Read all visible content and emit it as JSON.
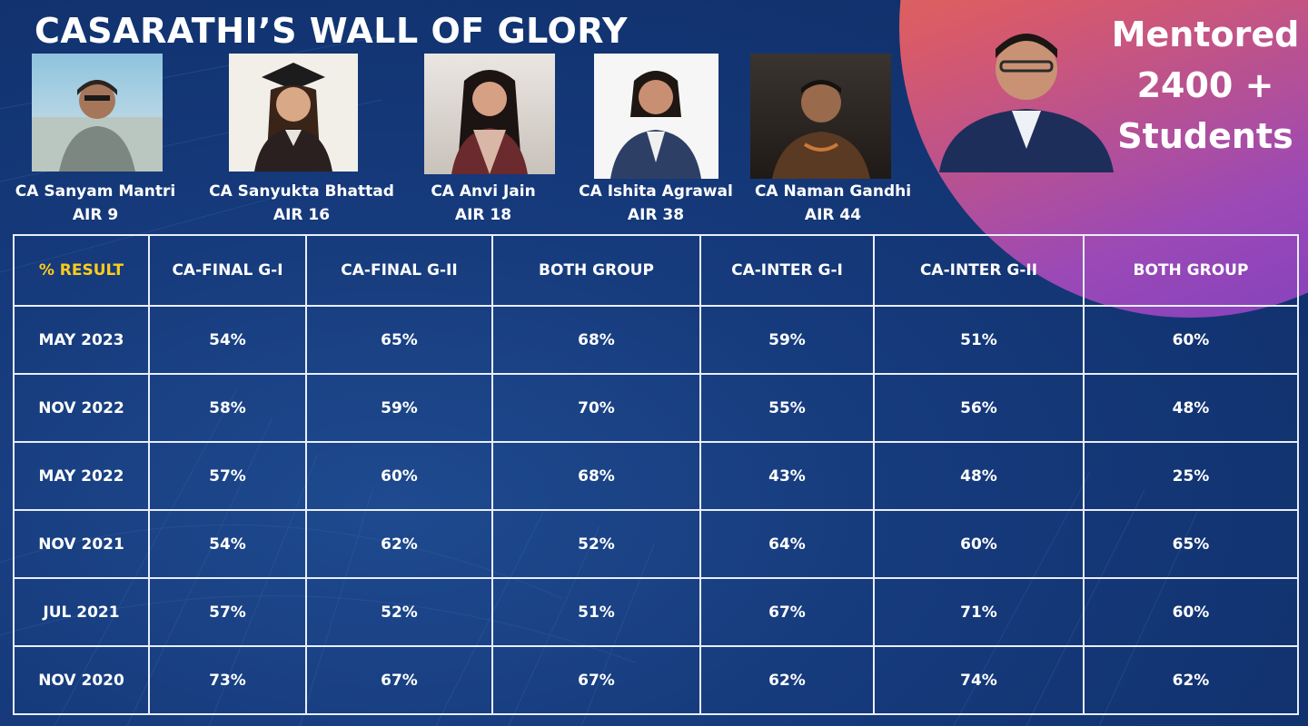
{
  "header": {
    "title": "CASARATHI’S WALL OF GLORY",
    "mentored_lines": [
      "Mentored",
      "2400 +",
      "Students"
    ]
  },
  "students": [
    {
      "name": "CA Sanyam Mantri",
      "air": "AIR 9"
    },
    {
      "name": "CA Sanyukta Bhattad",
      "air": "AIR 16"
    },
    {
      "name": "CA Anvi Jain",
      "air": "AIR 18"
    },
    {
      "name": "CA Ishita Agrawal",
      "air": "AIR 38"
    },
    {
      "name": "CA Naman Gandhi",
      "air": "AIR 44"
    }
  ],
  "table": {
    "headers": [
      "% RESULT",
      "CA-FINAL G-I",
      "CA-FINAL G-II",
      "BOTH GROUP",
      "CA-INTER G-I",
      "CA-INTER G-II",
      "BOTH GROUP"
    ],
    "rows": [
      [
        "MAY 2023",
        "54%",
        "65%",
        "68%",
        "59%",
        "51%",
        "60%"
      ],
      [
        "NOV 2022",
        "58%",
        "59%",
        "70%",
        "55%",
        "56%",
        "48%"
      ],
      [
        "MAY 2022",
        "57%",
        "60%",
        "68%",
        "43%",
        "48%",
        "25%"
      ],
      [
        "NOV 2021",
        "54%",
        "62%",
        "52%",
        "64%",
        "60%",
        "65%"
      ],
      [
        "JUL 2021",
        "57%",
        "52%",
        "51%",
        "67%",
        "71%",
        "60%"
      ],
      [
        "NOV 2020",
        "73%",
        "67%",
        "67%",
        "62%",
        "74%",
        "62%"
      ]
    ]
  },
  "colors": {
    "background": "#15397a",
    "accent_yellow": "#ffcc1a",
    "circle_orange": "#ef7f2e",
    "circle_purple": "#8b44bd",
    "grid_line": "#e9eef7"
  }
}
